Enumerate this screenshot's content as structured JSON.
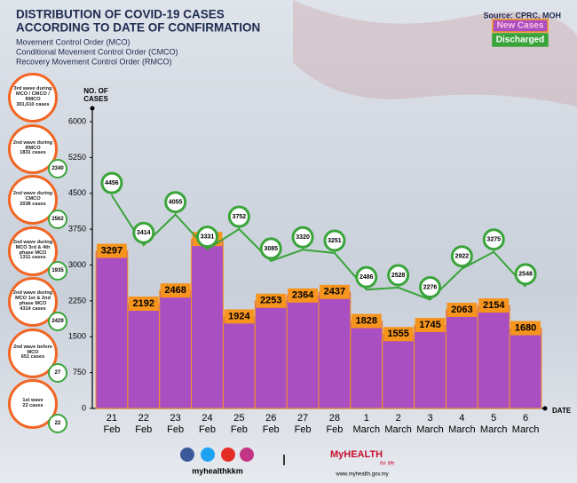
{
  "chart_data": {
    "type": "bar",
    "title": [
      "DISTRIBUTION OF COVID-19 CASES",
      "ACCORDING TO DATE OF CONFIRMATION"
    ],
    "subtitle": [
      "Movement Control Order (MCO)",
      "Conditional Movement Control Order (CMCO)",
      "Recovery Movement Control Order (RMCO)"
    ],
    "source": "Source: CPRC, MOH",
    "y_label": [
      "NO. OF",
      "CASES"
    ],
    "x_label": "DATE",
    "categories": [
      [
        "21",
        "Feb"
      ],
      [
        "22",
        "Feb"
      ],
      [
        "23",
        "Feb"
      ],
      [
        "24",
        "Feb"
      ],
      [
        "25",
        "Feb"
      ],
      [
        "26",
        "Feb"
      ],
      [
        "27",
        "Feb"
      ],
      [
        "28",
        "Feb"
      ],
      [
        "1",
        "March"
      ],
      [
        "2",
        "March"
      ],
      [
        "3",
        "March"
      ],
      [
        "4",
        "March"
      ],
      [
        "5",
        "March"
      ],
      [
        "6",
        "March"
      ]
    ],
    "series": [
      {
        "name": "New Cases",
        "type": "bar",
        "color": "#a94fc2",
        "label_color": "#f7941d",
        "values": [
          3297,
          2192,
          2468,
          3545,
          1924,
          2253,
          2364,
          2437,
          1828,
          1555,
          1745,
          2063,
          2154,
          1680
        ]
      },
      {
        "name": "Discharged",
        "type": "line",
        "color": "#3aa43a",
        "values": [
          4456,
          3414,
          4055,
          3331,
          3752,
          3085,
          3320,
          3251,
          2486,
          2528,
          2276,
          2922,
          3275,
          2548
        ]
      }
    ],
    "ylim": [
      0,
      6000
    ],
    "yticks": [
      0,
      750,
      1500,
      2250,
      3000,
      3750,
      4500,
      5250,
      6000
    ]
  },
  "waves": [
    {
      "label": "3rd wave during MCO / CMCO / RMCO",
      "cases": "301,610 cases"
    },
    {
      "label": "2nd wave during RMCO",
      "cases": "1831 cases",
      "discharged": "2340"
    },
    {
      "label": "2nd wave during CMCO",
      "cases": "2038 cases",
      "discharged": "2562"
    },
    {
      "label": "2nd wave during MCO 3rd & 4th phase MCO",
      "cases": "1311 cases",
      "discharged": "1935"
    },
    {
      "label": "2nd wave during MCO 1st & 2nd phase MCO",
      "cases": "4314 cases",
      "discharged": "2429"
    },
    {
      "label": "2nd wave before MCO",
      "cases": "651 cases",
      "discharged": "27"
    },
    {
      "label": "1st wave",
      "cases": "22 cases",
      "discharged": "22"
    }
  ],
  "footer": {
    "handle": "myhealthkkm",
    "brand": "MyHEALTH",
    "tagline": "for life",
    "url": "www.myhealth.gov.my"
  }
}
